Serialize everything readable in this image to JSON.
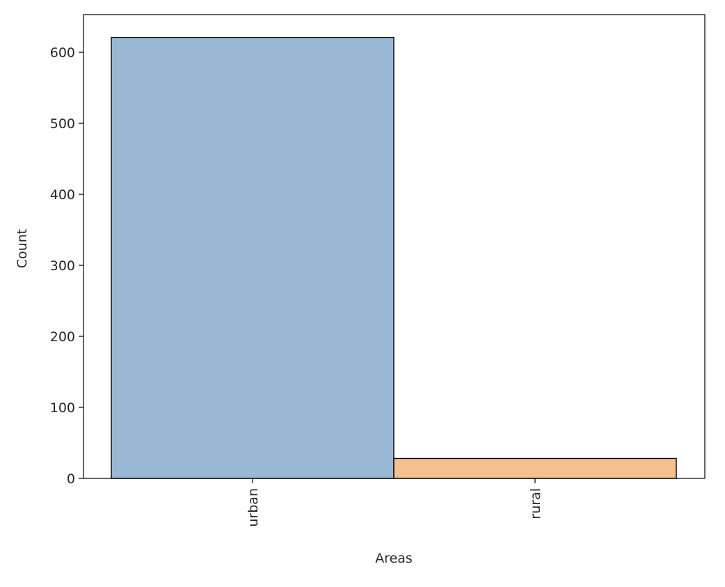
{
  "chart_data": {
    "type": "bar",
    "title": "",
    "xlabel": "Areas",
    "ylabel": "Count",
    "categories": [
      "urban",
      "rural"
    ],
    "values": [
      621,
      28
    ],
    "ylim": [
      0,
      653
    ],
    "yticks": [
      0,
      100,
      200,
      300,
      400,
      500,
      600
    ],
    "ytick_labels": [
      "0",
      "100",
      "200",
      "300",
      "400",
      "500",
      "600"
    ],
    "grid": false,
    "legend": "none",
    "bar_colors": [
      "#98b8d6",
      "#f5bf8e"
    ],
    "edge_color": "#000000"
  }
}
